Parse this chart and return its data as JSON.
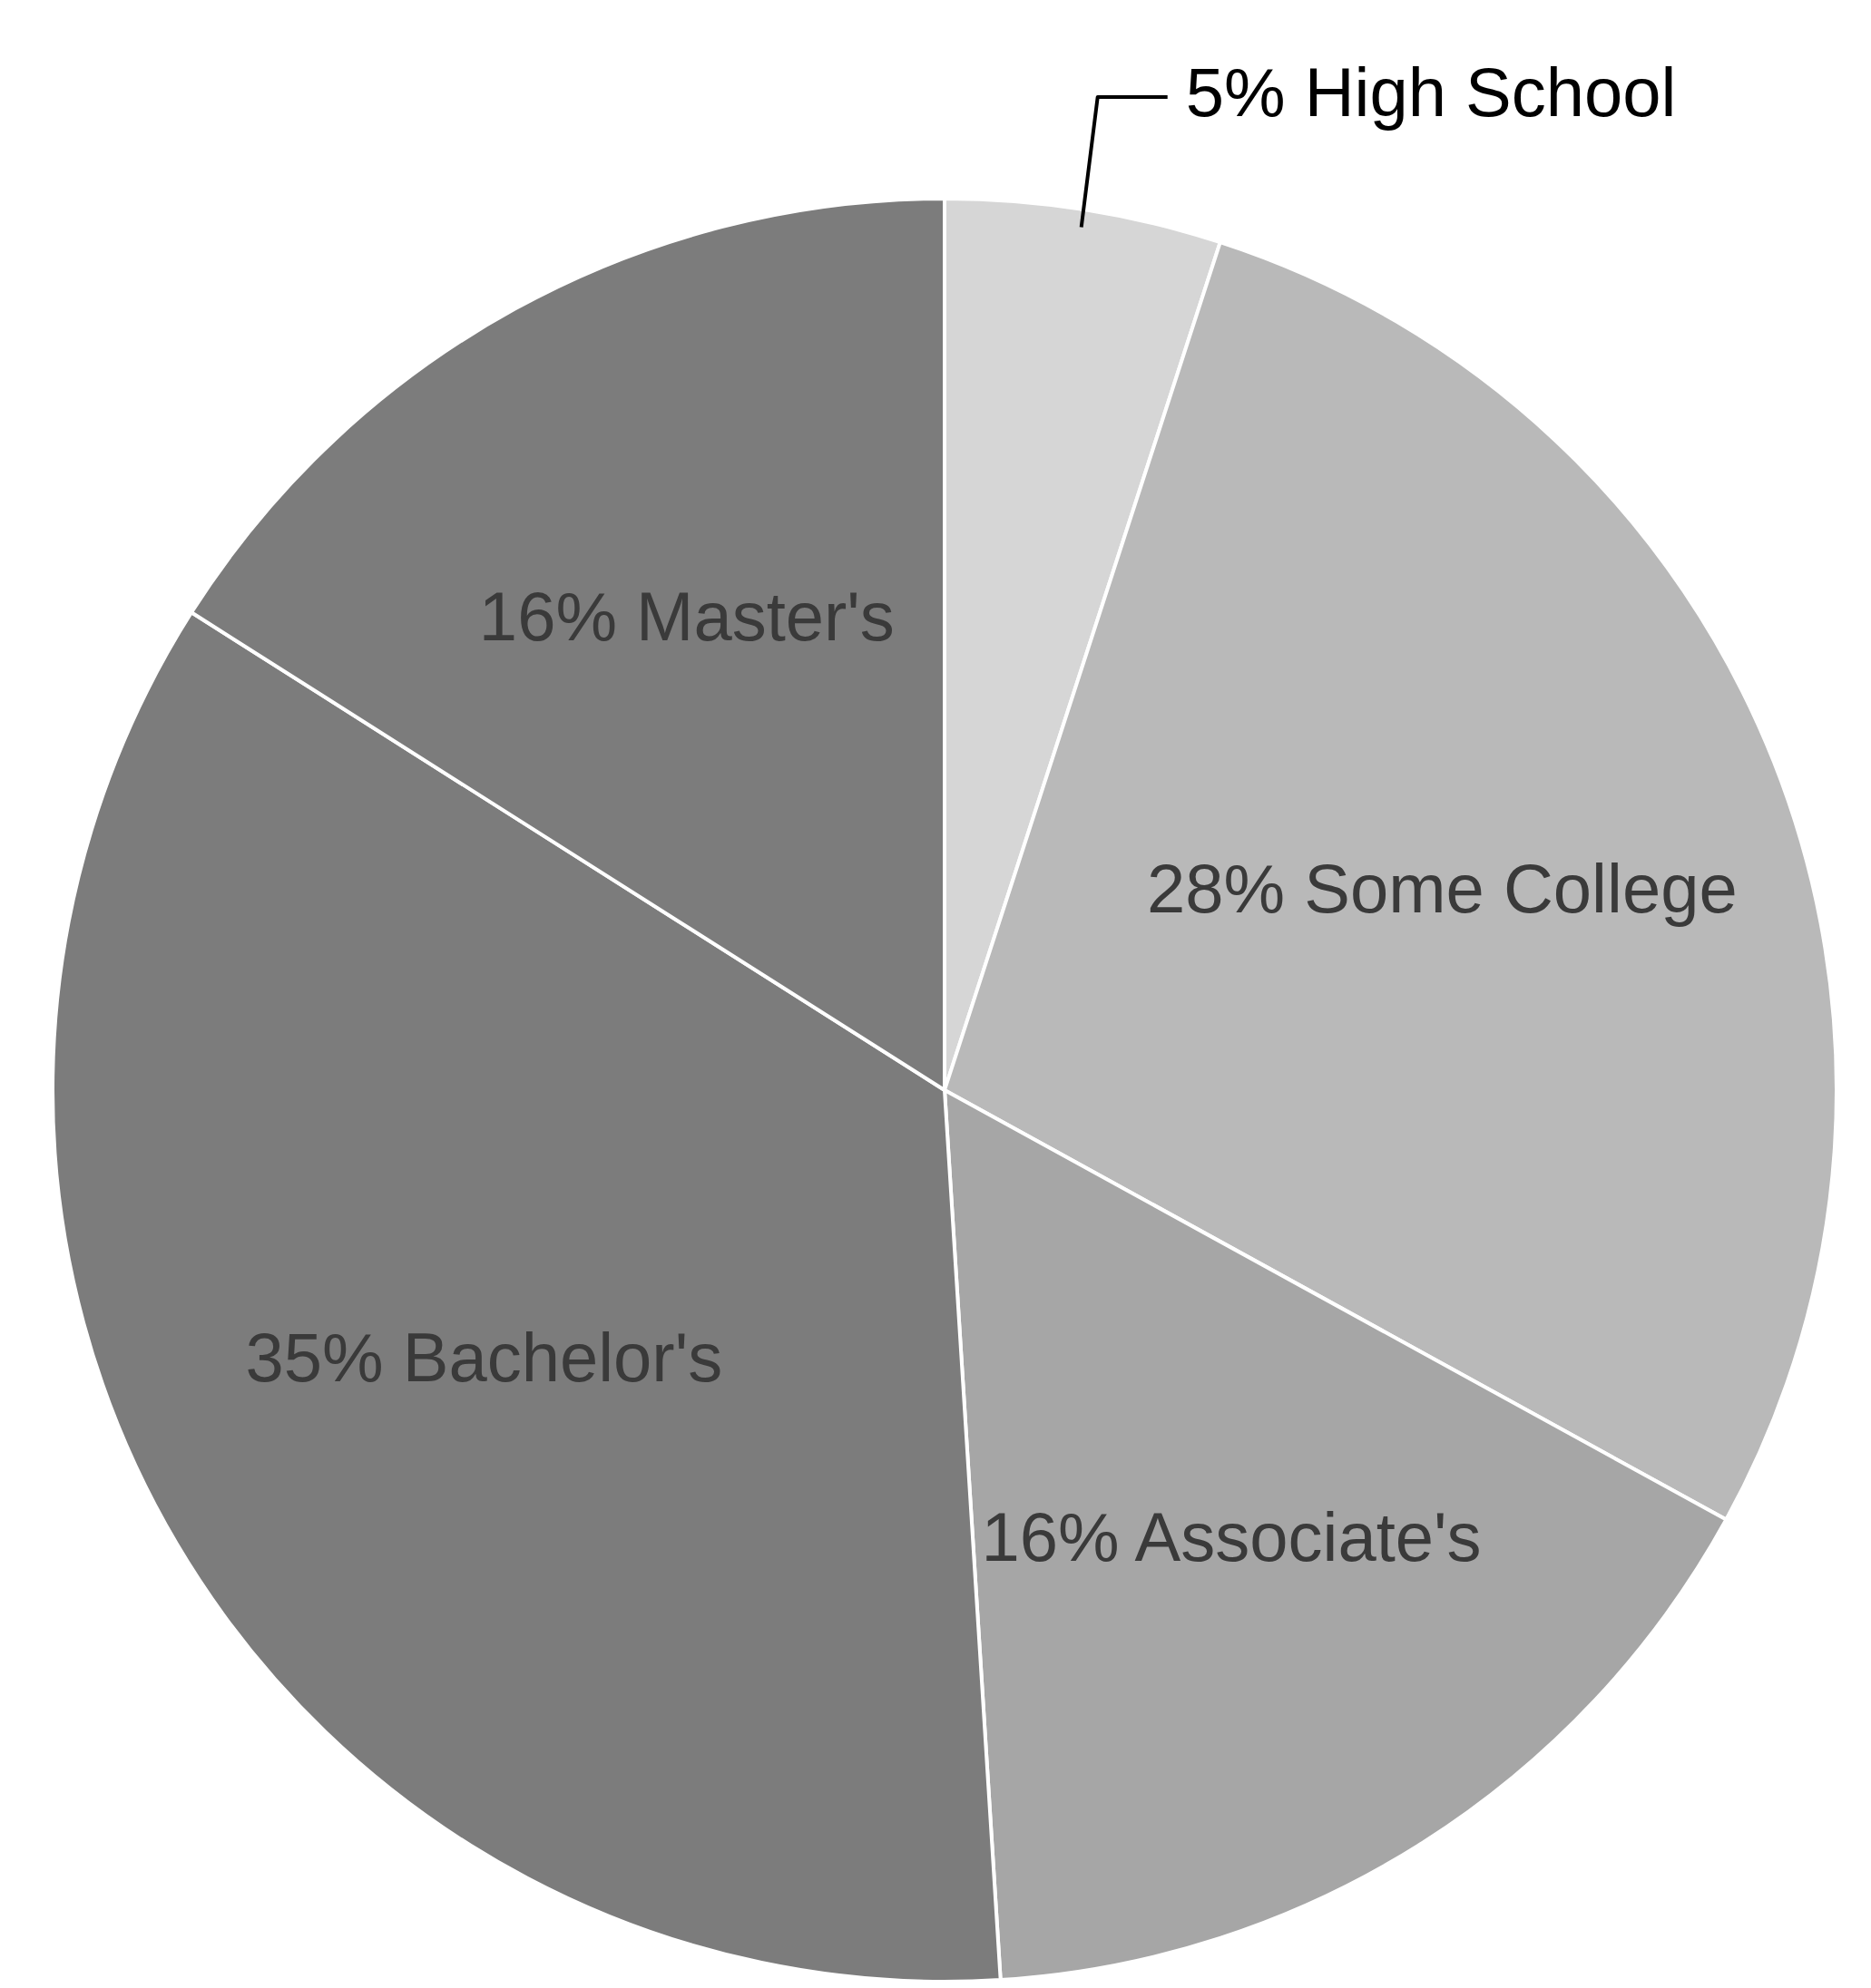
{
  "chart_data": {
    "type": "pie",
    "categories": [
      "High School",
      "Some College",
      "Associate's",
      "Bachelor's",
      "Master's"
    ],
    "values": [
      5,
      28,
      16,
      35,
      16
    ],
    "value_labels": [
      "5%",
      "28%",
      "16%",
      "35%",
      "16%"
    ],
    "colors": [
      "#d6d6d6",
      "#b9b9b9",
      "#a6a6a6",
      "#7c7c7c",
      "#7c7c7c"
    ],
    "legend": false
  }
}
